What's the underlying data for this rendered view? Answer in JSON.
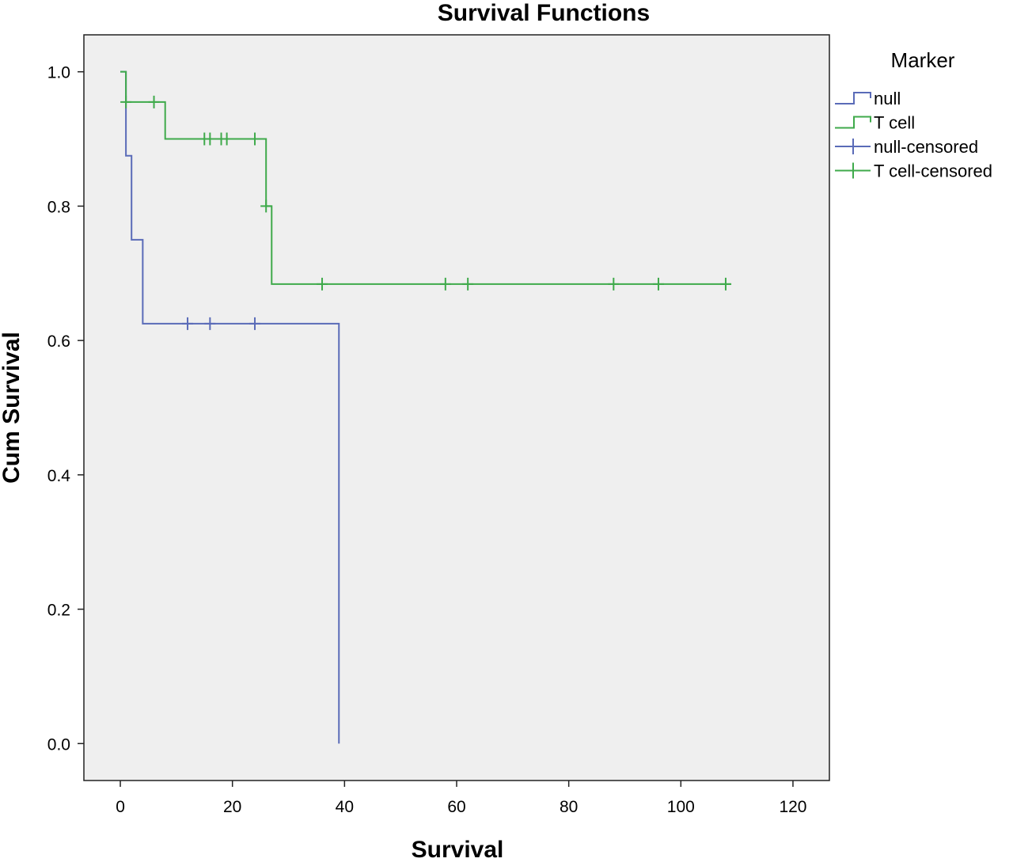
{
  "chart_data": {
    "type": "line",
    "title": "Survival Functions",
    "xlabel": "Survival",
    "ylabel": "Cum Survival",
    "xlim": [
      -6.5,
      126.5
    ],
    "ylim": [
      -0.055,
      1.055
    ],
    "xticks": [
      0,
      20,
      40,
      60,
      80,
      100,
      120
    ],
    "yticks": [
      0.0,
      0.2,
      0.4,
      0.6,
      0.8,
      1.0
    ],
    "ytick_labels": [
      "0.0",
      "0.2",
      "0.4",
      "0.6",
      "0.8",
      "1.0"
    ],
    "grid": false,
    "legend": {
      "title": "Marker",
      "position": "right",
      "entries": [
        {
          "label": "null",
          "kind": "step",
          "color": "#5a6bb8"
        },
        {
          "label": "T cell",
          "kind": "step",
          "color": "#3faa4b"
        },
        {
          "label": "null-censored",
          "kind": "censor",
          "color": "#5a6bb8"
        },
        {
          "label": "T cell-censored",
          "kind": "censor",
          "color": "#3faa4b"
        }
      ]
    },
    "series": [
      {
        "name": "null",
        "color": "#5a6bb8",
        "steps": [
          [
            0,
            1.0
          ],
          [
            1,
            0.875
          ],
          [
            2,
            0.75
          ],
          [
            4,
            0.625
          ],
          [
            39,
            0.0
          ]
        ],
        "censored": [
          [
            12,
            0.625
          ],
          [
            16,
            0.625
          ],
          [
            24,
            0.625
          ]
        ]
      },
      {
        "name": "T cell",
        "color": "#3faa4b",
        "steps": [
          [
            0,
            1.0
          ],
          [
            1,
            0.955
          ],
          [
            8,
            0.9
          ],
          [
            26,
            0.8
          ],
          [
            27,
            0.684
          ],
          [
            109,
            0.684
          ]
        ],
        "censored": [
          [
            1,
            0.955
          ],
          [
            6,
            0.955
          ],
          [
            15,
            0.9
          ],
          [
            16,
            0.9
          ],
          [
            18,
            0.9
          ],
          [
            19,
            0.9
          ],
          [
            24,
            0.9
          ],
          [
            26,
            0.8
          ],
          [
            36,
            0.684
          ],
          [
            58,
            0.684
          ],
          [
            62,
            0.684
          ],
          [
            88,
            0.684
          ],
          [
            96,
            0.684
          ],
          [
            108,
            0.684
          ]
        ]
      }
    ],
    "colors": {
      "plot_background": "#efefef",
      "frame": "#222222"
    }
  }
}
